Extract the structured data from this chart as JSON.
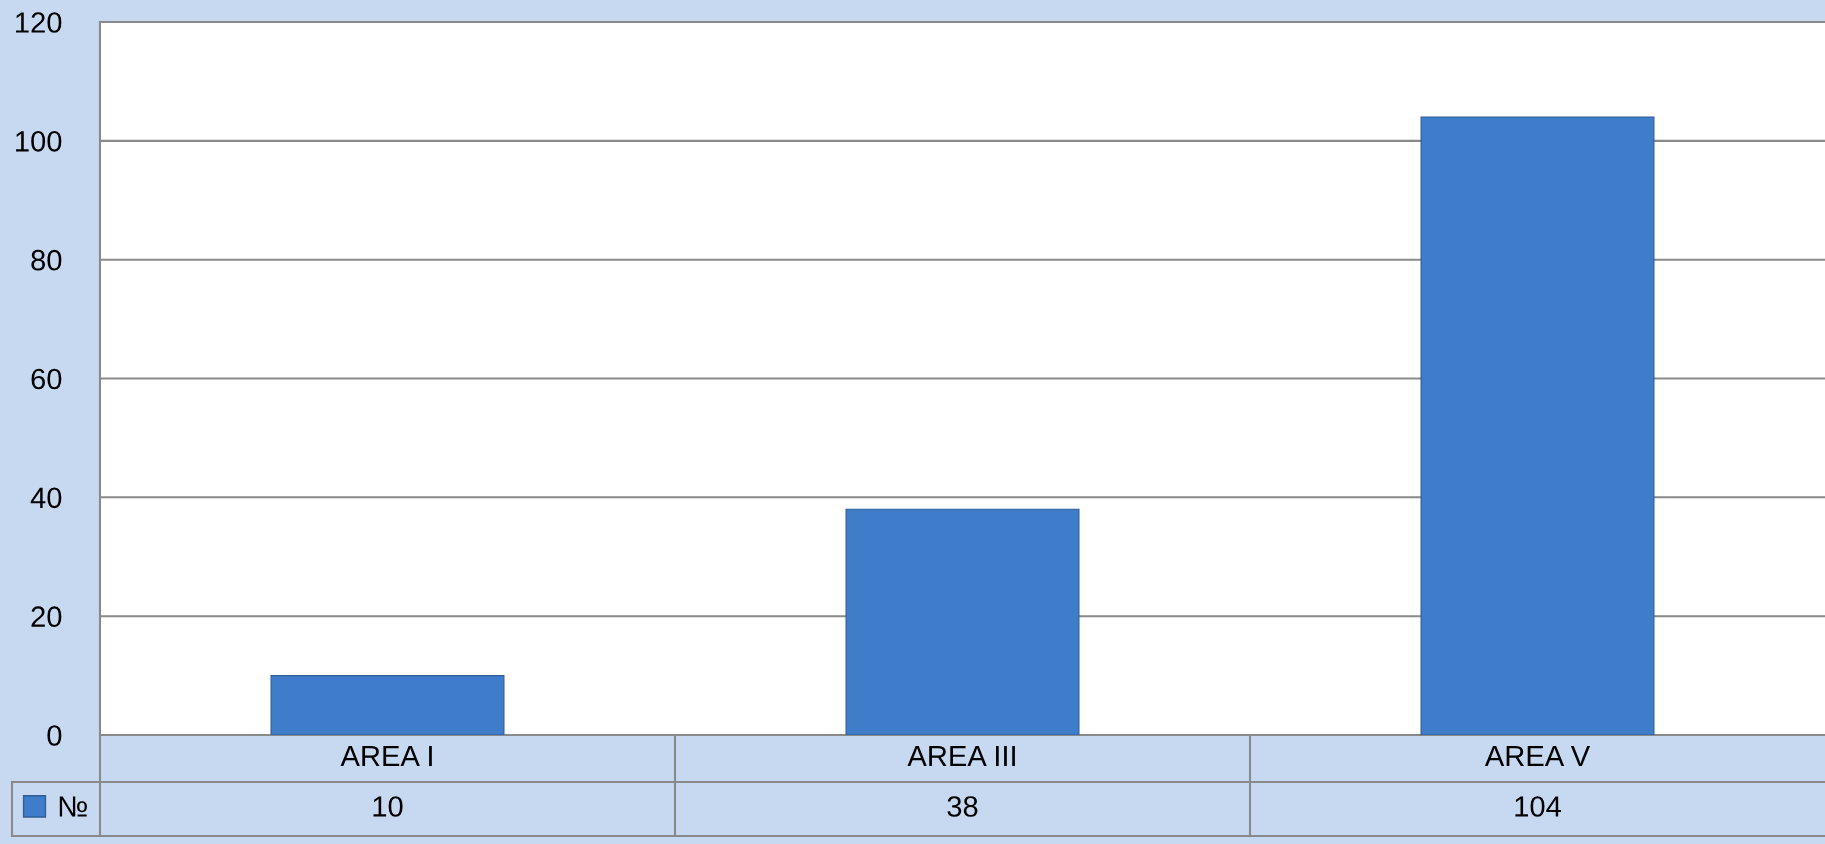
{
  "chart_data": {
    "type": "bar",
    "categories": [
      "AREA I",
      "AREA III",
      "AREA V"
    ],
    "series": [
      {
        "name": "№",
        "color": "#3f7cc9",
        "values": [
          10,
          38,
          104
        ]
      }
    ],
    "ylim": [
      0,
      120
    ],
    "yticks": [
      0,
      20,
      40,
      60,
      80,
      100,
      120
    ],
    "grid": "y",
    "legend": "bottom left",
    "data_labels": true
  }
}
